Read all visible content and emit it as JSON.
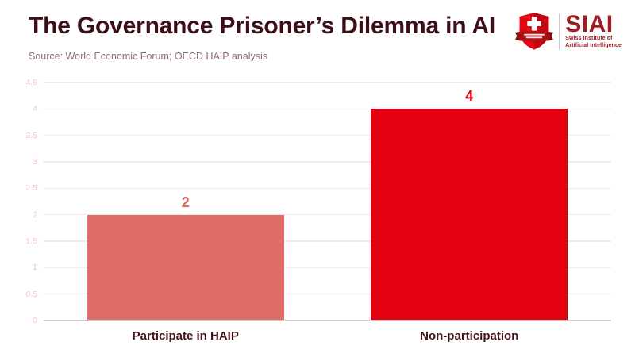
{
  "chart_data": {
    "type": "bar",
    "title": "The Governance Prisoner’s Dilemma in AI",
    "source": "Source: World Economic Forum; OECD HAIP analysis",
    "categories": [
      "Participate in HAIP",
      "Non-participation"
    ],
    "values": [
      2,
      4
    ],
    "value_labels": [
      "2",
      "4"
    ],
    "value_label_colors": [
      "#d96763",
      "#e3000f"
    ],
    "bar_colors": [
      "#df6d68",
      "#e3000f"
    ],
    "xlabel": "",
    "ylabel": "",
    "ylim": [
      0,
      4.5
    ],
    "yticks": [
      "0",
      "0.5",
      "1",
      "1.5",
      "2",
      "2.5",
      "3",
      "3.5",
      "4",
      "4.5"
    ],
    "grid": "horizontal",
    "legend": "none"
  },
  "logo": {
    "wordmark": "SIAI",
    "tagline_line1": "Swiss Institute of",
    "tagline_line2": "Artificial Intelligence"
  },
  "colors": {
    "title": "#3b0f15",
    "source_text": "#8e6c71",
    "tick_text": "#f5c6c6",
    "gridline": "#f9e6e6",
    "axis_baseline": "#cbcbcb",
    "category_label": "#451318",
    "logo_red": "#9e1c20",
    "shield_red": "#e30613",
    "ribbon_red": "#a81016"
  }
}
